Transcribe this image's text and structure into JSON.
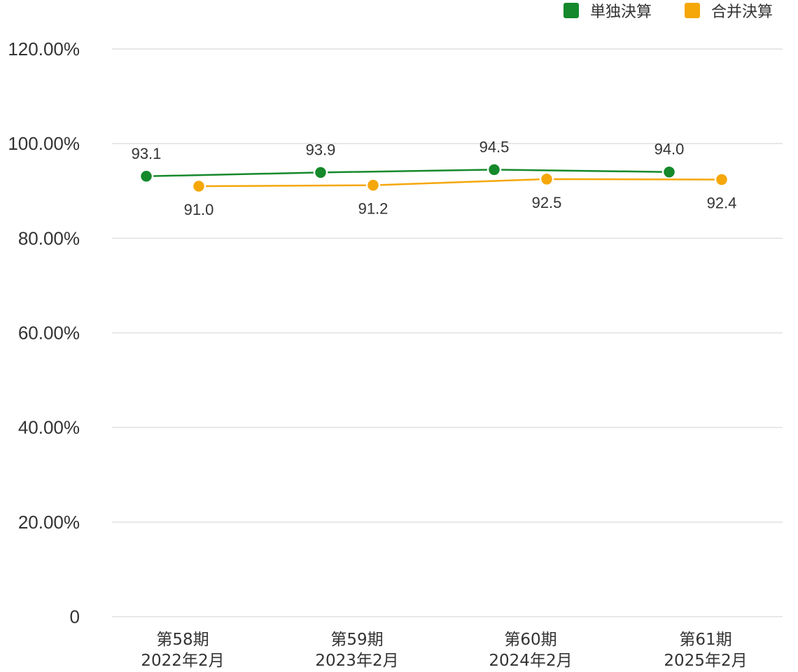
{
  "chart_data": {
    "type": "line",
    "categories": [
      [
        "第58期",
        "2022年2月"
      ],
      [
        "第59期",
        "2023年2月"
      ],
      [
        "第60期",
        "2024年2月"
      ],
      [
        "第61期",
        "2025年2月"
      ]
    ],
    "ylim": [
      0,
      120
    ],
    "yticks": [
      {
        "value": 0,
        "label": "0"
      },
      {
        "value": 20,
        "label": "20.00%"
      },
      {
        "value": 40,
        "label": "40.00%"
      },
      {
        "value": 60,
        "label": "60.00%"
      },
      {
        "value": 80,
        "label": "80.00%"
      },
      {
        "value": 100,
        "label": "100.00%"
      },
      {
        "value": 120,
        "label": "120.00%"
      }
    ],
    "grid": true,
    "legend_position": "top-right",
    "series": [
      {
        "name": "単独決算",
        "color": "#15892b",
        "values": [
          93.1,
          93.9,
          94.5,
          94.0
        ],
        "labels": [
          "93.1",
          "93.9",
          "94.5",
          "94.0"
        ],
        "label_position": "above"
      },
      {
        "name": "合并決算",
        "color": "#f5a70a",
        "values": [
          91.0,
          91.2,
          92.5,
          92.4
        ],
        "labels": [
          "91.0",
          "91.2",
          "92.5",
          "92.4"
        ],
        "label_position": "below"
      }
    ]
  }
}
